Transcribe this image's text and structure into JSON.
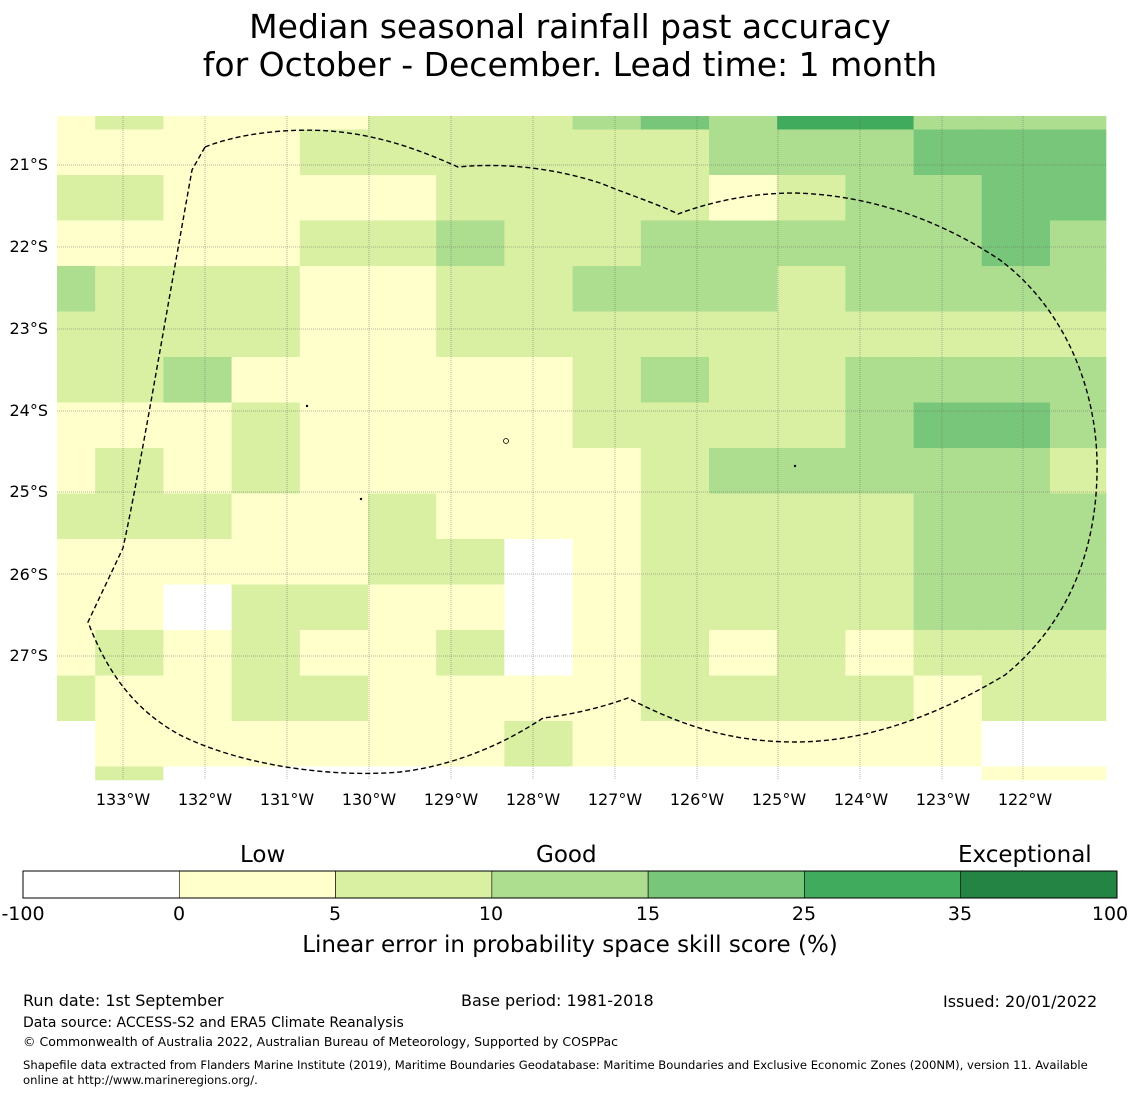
{
  "title": {
    "line1": "Median seasonal rainfall past accuracy",
    "line2": "for October - December. Lead time: 1 month"
  },
  "map": {
    "lat_labels": [
      "21°S",
      "22°S",
      "23°S",
      "24°S",
      "25°S",
      "26°S",
      "27°S"
    ],
    "lon_labels": [
      "133°W",
      "132°W",
      "131°W",
      "130°W",
      "129°W",
      "128°W",
      "127°W",
      "126°W",
      "125°W",
      "124°W",
      "123°W",
      "122°W"
    ],
    "colors": [
      "#ffffff",
      "#ffffcc",
      "#d9f0a3",
      "#addd8e",
      "#78c679",
      "#41ab5d",
      "#238443"
    ],
    "grid_levels": [
      [
        1,
        2,
        1,
        1,
        1,
        2,
        2,
        2,
        3,
        4,
        3,
        5,
        5,
        3,
        3,
        3,
        1,
        1,
        1,
        0,
        1,
        1
      ],
      [
        1,
        1,
        1,
        1,
        2,
        2,
        2,
        2,
        2,
        2,
        3,
        3,
        3,
        4,
        4,
        4,
        3,
        3,
        3,
        3,
        2,
        2
      ],
      [
        2,
        2,
        1,
        1,
        1,
        1,
        2,
        2,
        2,
        2,
        1,
        2,
        3,
        3,
        4,
        4,
        3,
        3,
        3,
        4,
        3,
        3
      ],
      [
        1,
        1,
        1,
        1,
        2,
        2,
        3,
        2,
        2,
        3,
        3,
        3,
        3,
        3,
        4,
        3,
        3,
        3,
        4,
        3,
        4,
        4
      ],
      [
        3,
        2,
        2,
        2,
        1,
        1,
        2,
        2,
        3,
        3,
        3,
        2,
        3,
        3,
        3,
        3,
        3,
        2,
        3,
        3,
        4,
        4
      ],
      [
        2,
        2,
        2,
        2,
        1,
        1,
        2,
        2,
        2,
        2,
        2,
        2,
        2,
        2,
        2,
        2,
        2,
        3,
        3,
        3,
        4,
        4
      ],
      [
        2,
        2,
        3,
        1,
        1,
        1,
        1,
        1,
        2,
        3,
        2,
        2,
        3,
        3,
        3,
        3,
        2,
        3,
        3,
        3,
        3,
        3
      ],
      [
        1,
        1,
        1,
        2,
        1,
        1,
        1,
        1,
        2,
        2,
        2,
        2,
        3,
        4,
        4,
        3,
        3,
        3,
        3,
        3,
        3,
        3
      ],
      [
        1,
        2,
        1,
        2,
        1,
        1,
        1,
        1,
        1,
        2,
        3,
        3,
        3,
        3,
        3,
        2,
        3,
        3,
        3,
        3,
        3,
        3
      ],
      [
        2,
        2,
        2,
        1,
        1,
        2,
        1,
        1,
        1,
        2,
        2,
        2,
        2,
        3,
        3,
        3,
        2,
        2,
        2,
        2,
        4,
        3
      ],
      [
        1,
        1,
        1,
        1,
        1,
        2,
        2,
        0,
        1,
        2,
        2,
        2,
        2,
        3,
        3,
        3,
        3,
        3,
        3,
        3,
        3,
        4
      ],
      [
        1,
        1,
        0,
        2,
        2,
        1,
        1,
        0,
        1,
        2,
        2,
        2,
        2,
        3,
        3,
        3,
        3,
        3,
        3,
        3,
        3,
        4
      ],
      [
        1,
        2,
        1,
        2,
        1,
        1,
        2,
        0,
        1,
        2,
        1,
        2,
        1,
        2,
        2,
        2,
        2,
        1,
        3,
        3,
        4,
        3
      ],
      [
        2,
        1,
        1,
        2,
        2,
        1,
        1,
        1,
        1,
        2,
        2,
        2,
        2,
        1,
        2,
        2,
        2,
        2,
        2,
        2,
        3,
        3
      ],
      [
        0,
        1,
        1,
        1,
        1,
        1,
        1,
        2,
        1,
        1,
        1,
        1,
        1,
        1,
        0,
        0,
        0,
        0,
        2,
        2,
        2,
        2
      ],
      [
        0,
        2,
        0,
        0,
        0,
        0,
        0,
        0,
        0,
        0,
        0,
        0,
        0,
        0,
        1,
        1,
        1,
        0,
        0,
        0,
        1,
        1
      ]
    ]
  },
  "colorbar": {
    "categories": [
      "Low",
      "Good",
      "Exceptional"
    ],
    "ticks": [
      "-100",
      "0",
      "5",
      "10",
      "15",
      "25",
      "35",
      "100"
    ],
    "label": "Linear error in probability space skill score (%)"
  },
  "footer": {
    "run_date": "Run date: 1st September",
    "base_period": "Base period: 1981-2018",
    "issued": "Issued: 20/01/2022",
    "data_source": "Data source: ACCESS-S2 and ERA5 Climate Reanalysis",
    "copyright": "© Commonwealth of Australia 2022, Australian Bureau of Meteorology, Supported by COSPPac",
    "shapefile_line1": "Shapefile data extracted from Flanders Marine Institute (2019), Maritime Boundaries Geodatabase: Maritime Boundaries and Exclusive Economic Zones (200NM), version 11. Available",
    "shapefile_line2": "online at http://www.marineregions.org/."
  }
}
